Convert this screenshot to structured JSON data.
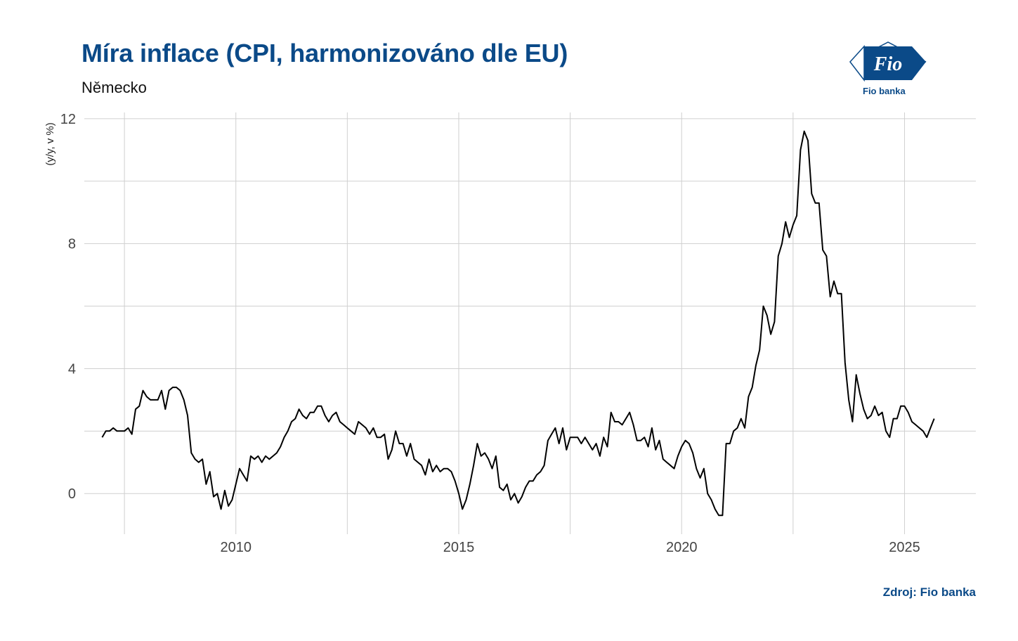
{
  "header": {
    "title": "Míra inflace (CPI, harmonizováno dle EU)",
    "subtitle": "Německo"
  },
  "logo": {
    "mark": "Fio",
    "name": "Fio banka",
    "color": "#0b4a88"
  },
  "footer": {
    "source": "Zdroj: Fio banka"
  },
  "chart_data": {
    "type": "line",
    "title": "Míra inflace (CPI, harmonizováno dle EU)",
    "subtitle": "Německo",
    "xlabel": "",
    "ylabel": "(y/y, v %)",
    "xlim": [
      2006.6,
      2026.6
    ],
    "ylim": [
      -1.3,
      12.2
    ],
    "x_ticks": [
      2010,
      2015,
      2020,
      2025
    ],
    "y_ticks": [
      0,
      4,
      8,
      12
    ],
    "grid": true,
    "line_color": "#000000",
    "x_start": 2007.0,
    "x_step": 0.08333,
    "values": [
      1.8,
      2.0,
      2.0,
      2.1,
      2.0,
      2.0,
      2.0,
      2.1,
      1.9,
      2.7,
      2.8,
      3.3,
      3.1,
      3.0,
      3.0,
      3.0,
      3.3,
      2.7,
      3.3,
      3.4,
      3.4,
      3.3,
      3.0,
      2.5,
      1.3,
      1.1,
      1.0,
      1.1,
      0.3,
      0.7,
      -0.1,
      0.0,
      -0.5,
      0.1,
      -0.4,
      -0.2,
      0.3,
      0.8,
      0.6,
      0.4,
      1.2,
      1.1,
      1.2,
      1.0,
      1.2,
      1.1,
      1.2,
      1.3,
      1.5,
      1.8,
      2.0,
      2.3,
      2.4,
      2.7,
      2.5,
      2.4,
      2.6,
      2.6,
      2.8,
      2.8,
      2.5,
      2.3,
      2.5,
      2.6,
      2.3,
      2.2,
      2.1,
      2.0,
      1.9,
      2.3,
      2.2,
      2.1,
      1.9,
      2.1,
      1.8,
      1.8,
      1.9,
      1.1,
      1.4,
      2.0,
      1.6,
      1.6,
      1.2,
      1.6,
      1.1,
      1.0,
      0.9,
      0.6,
      1.1,
      0.7,
      0.9,
      0.7,
      0.8,
      0.8,
      0.7,
      0.4,
      0.0,
      -0.5,
      -0.2,
      0.3,
      0.9,
      1.6,
      1.2,
      1.3,
      1.1,
      0.8,
      1.2,
      0.2,
      0.1,
      0.3,
      -0.2,
      0.0,
      -0.3,
      -0.1,
      0.2,
      0.4,
      0.4,
      0.6,
      0.7,
      0.9,
      1.7,
      1.9,
      2.1,
      1.6,
      2.1,
      1.4,
      1.8,
      1.8,
      1.8,
      1.6,
      1.8,
      1.6,
      1.4,
      1.6,
      1.2,
      1.8,
      1.5,
      2.6,
      2.3,
      2.3,
      2.2,
      2.4,
      2.6,
      2.2,
      1.7,
      1.7,
      1.8,
      1.5,
      2.1,
      1.4,
      1.7,
      1.1,
      1.0,
      0.9,
      0.8,
      1.2,
      1.5,
      1.7,
      1.6,
      1.3,
      0.8,
      0.5,
      0.8,
      0.0,
      -0.2,
      -0.5,
      -0.7,
      -0.7,
      1.6,
      1.6,
      2.0,
      2.1,
      2.4,
      2.1,
      3.1,
      3.4,
      4.1,
      4.6,
      6.0,
      5.7,
      5.1,
      5.5,
      7.6,
      8.0,
      8.7,
      8.2,
      8.6,
      8.9,
      11.0,
      11.6,
      11.3,
      9.6,
      9.3,
      9.3,
      7.8,
      7.6,
      6.3,
      6.8,
      6.4,
      6.4,
      4.2,
      3.0,
      2.3,
      3.8,
      3.2,
      2.7,
      2.4,
      2.5,
      2.8,
      2.5,
      2.6,
      2.0,
      1.8,
      2.4,
      2.4,
      2.8,
      2.8,
      2.6,
      2.3,
      2.2,
      2.1,
      2.0,
      1.8,
      2.1,
      2.4
    ]
  }
}
